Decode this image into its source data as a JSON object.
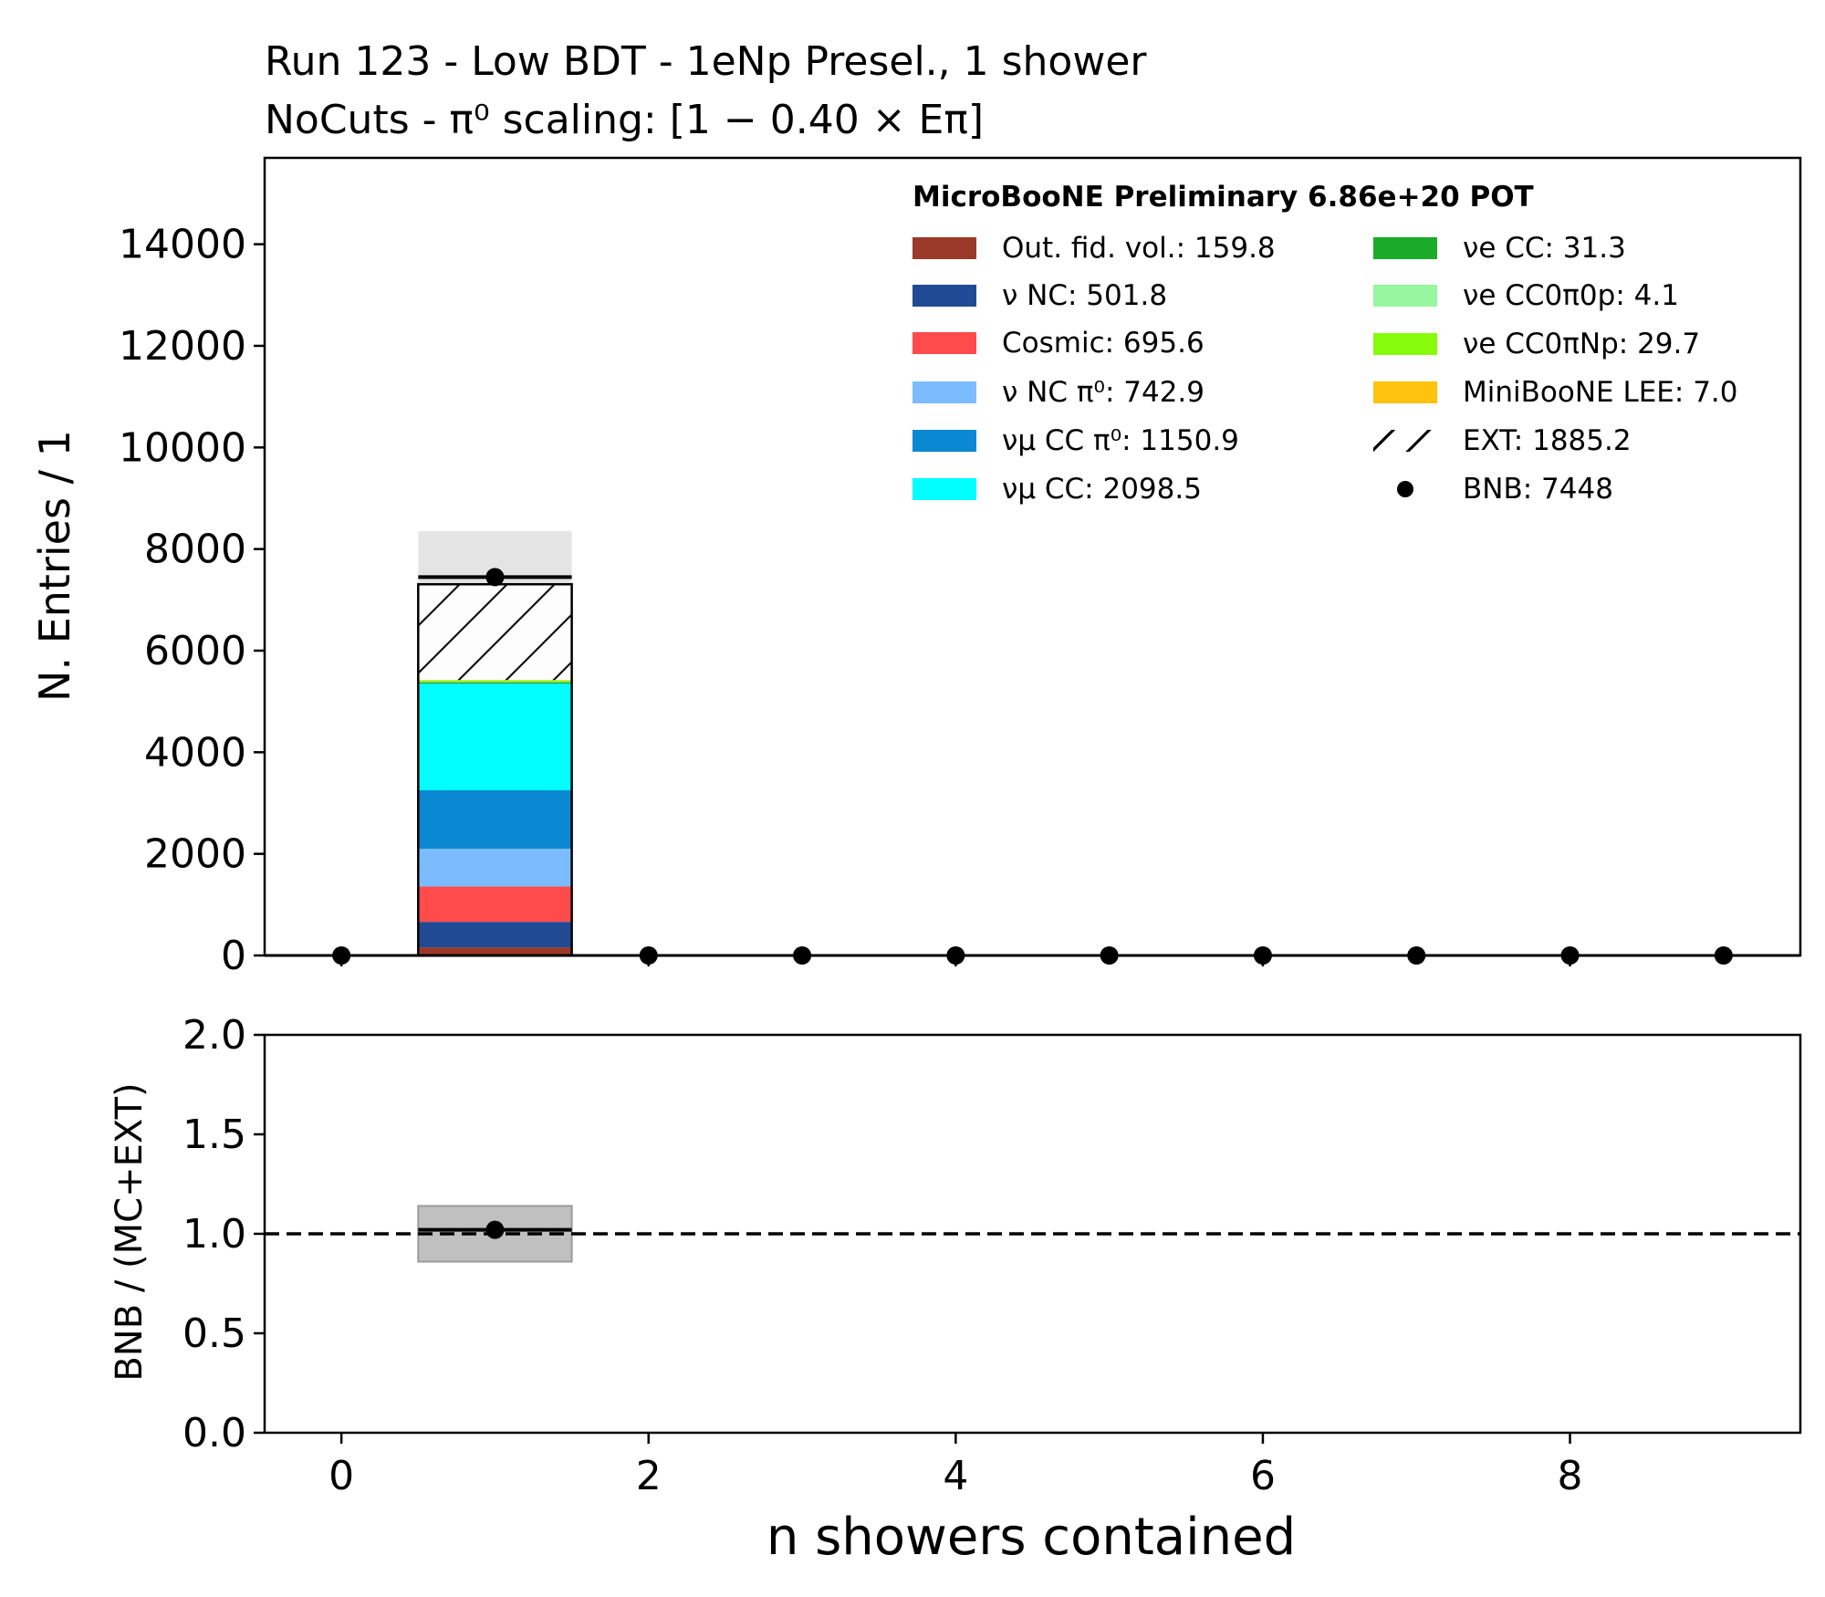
{
  "title": {
    "line1": "Run 123 - Low BDT - 1eNp Presel., 1 shower",
    "line2": "NoCuts - π⁰ scaling: [1 − 0.40 × Eπ]"
  },
  "legend": {
    "title": "MicroBooNE Preliminary 6.86e+20 POT",
    "items": [
      {
        "label": "Out. fid. vol.: 159.8",
        "color": "#9b3a2a",
        "kind": "patch"
      },
      {
        "label": "ν NC: 501.8",
        "color": "#204a93",
        "kind": "patch"
      },
      {
        "label": "Cosmic: 695.6",
        "color": "#ff4b4b",
        "kind": "patch"
      },
      {
        "label": "ν NC π⁰: 742.9",
        "color": "#7bbcff",
        "kind": "patch"
      },
      {
        "label": "νμ CC π⁰: 1150.9",
        "color": "#0b88d2",
        "kind": "patch"
      },
      {
        "label": "νμ CC: 2098.5",
        "color": "#00ffff",
        "kind": "patch"
      },
      {
        "label": "νe CC: 31.3",
        "color": "#1aab2a",
        "kind": "patch"
      },
      {
        "label": "νe CC0π0p: 4.1",
        "color": "#96f7a0",
        "kind": "patch"
      },
      {
        "label": "νe CC0πNp: 29.7",
        "color": "#86fc0b",
        "kind": "patch"
      },
      {
        "label": "MiniBooNE LEE: 7.0",
        "color": "#ffc30e",
        "kind": "patch"
      },
      {
        "label": "EXT: 1885.2",
        "color": "#ffffff",
        "kind": "hatch"
      },
      {
        "label": "BNB: 7448",
        "color": "#000000",
        "kind": "point"
      }
    ]
  },
  "chart_data": [
    {
      "type": "bar",
      "panel": "main",
      "xlabel": "n showers contained",
      "ylabel": "N. Entries / 1",
      "xlim": [
        -0.5,
        9.5
      ],
      "ylim": [
        0,
        15700
      ],
      "x_ticks": [
        0,
        2,
        4,
        6,
        8
      ],
      "y_ticks": [
        0,
        2000,
        4000,
        6000,
        8000,
        10000,
        12000,
        14000
      ],
      "bin_edges": [
        0.5,
        1.5
      ],
      "stack": [
        {
          "name": "Out. fid. vol.: 159.8",
          "value": 159.8,
          "color": "#9b3a2a"
        },
        {
          "name": "ν NC: 501.8",
          "value": 501.8,
          "color": "#204a93"
        },
        {
          "name": "Cosmic: 695.6",
          "value": 695.6,
          "color": "#ff4b4b"
        },
        {
          "name": "ν NC π⁰: 742.9",
          "value": 742.9,
          "color": "#7bbcff"
        },
        {
          "name": "νμ CC π⁰: 1150.9",
          "value": 1150.9,
          "color": "#0b88d2"
        },
        {
          "name": "νμ CC: 2098.5",
          "value": 2098.5,
          "color": "#00ffff"
        },
        {
          "name": "νe CC: 31.3",
          "value": 31.3,
          "color": "#1aab2a"
        },
        {
          "name": "νe CC0π0p: 4.1",
          "value": 4.1,
          "color": "#96f7a0"
        },
        {
          "name": "νe CC0πNp: 29.7",
          "value": 29.7,
          "color": "#86fc0b"
        },
        {
          "name": "MiniBooNE LEE: 7.0",
          "value": 7.0,
          "color": "#ffc30e"
        },
        {
          "name": "EXT: 1885.2",
          "value": 1885.2,
          "color": "#ffffff",
          "hatch": true
        }
      ],
      "uncertainty_band": {
        "low": 5420,
        "high": 8350,
        "color": "#e4e4e4"
      },
      "data_points": {
        "name": "BNB: 7448",
        "x": [
          0,
          1,
          2,
          3,
          4,
          5,
          6,
          7,
          8,
          9
        ],
        "y": [
          0,
          7448,
          0,
          0,
          0,
          0,
          0,
          0,
          0,
          0
        ]
      },
      "data_level_line": 7448
    },
    {
      "type": "scatter",
      "panel": "ratio",
      "xlabel": "n showers contained",
      "ylabel": "BNB / (MC+EXT)",
      "xlim": [
        -0.5,
        9.5
      ],
      "ylim": [
        0,
        2
      ],
      "x_ticks": [
        0,
        2,
        4,
        6,
        8
      ],
      "y_ticks": [
        "0.0",
        "0.5",
        "1.0",
        "1.5",
        "2.0"
      ],
      "reference_line": 1.0,
      "uncertainty_band": {
        "x": [
          0.5,
          1.5
        ],
        "low": 0.86,
        "high": 1.14,
        "color": "#c0c0c0"
      },
      "points": {
        "x": [
          1
        ],
        "y": [
          1.02
        ]
      }
    }
  ]
}
